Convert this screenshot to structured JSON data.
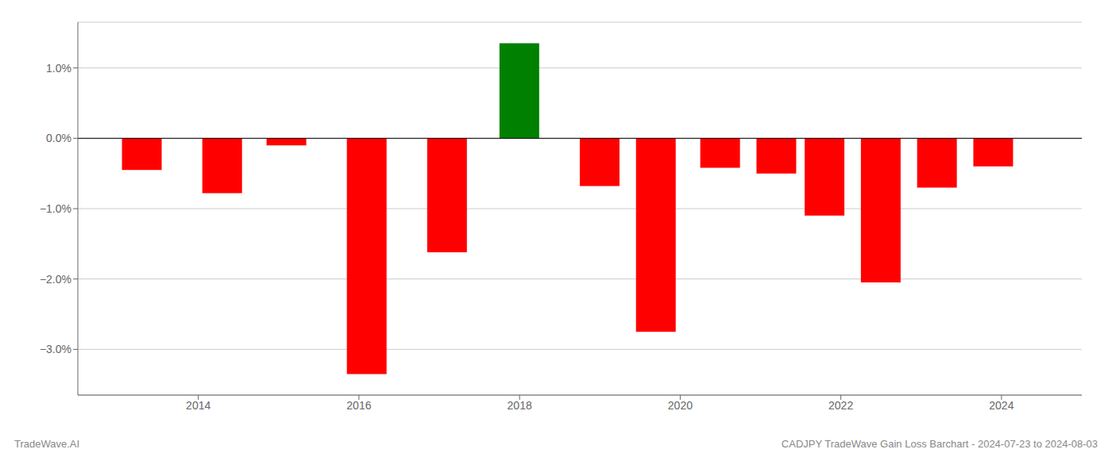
{
  "chart_data": {
    "type": "bar",
    "x": [
      2013.3,
      2014.3,
      2015.1,
      2016.1,
      2017.1,
      2018.0,
      2019.0,
      2019.7,
      2020.5,
      2021.2,
      2021.8,
      2022.5,
      2023.2,
      2023.9
    ],
    "values": [
      -0.45,
      -0.78,
      -0.1,
      -3.35,
      -1.62,
      1.35,
      -0.68,
      -2.75,
      -0.42,
      -0.5,
      -1.1,
      -2.05,
      -0.7,
      -0.4
    ],
    "colors": [
      "#ff0000",
      "#ff0000",
      "#ff0000",
      "#ff0000",
      "#ff0000",
      "#008000",
      "#ff0000",
      "#ff0000",
      "#ff0000",
      "#ff0000",
      "#ff0000",
      "#ff0000",
      "#ff0000",
      "#ff0000"
    ],
    "xlim": [
      2012.5,
      2025.0
    ],
    "ylim": [
      -3.65,
      1.65
    ],
    "xticks": [
      2014,
      2016,
      2018,
      2020,
      2022,
      2024
    ],
    "yticks": [
      {
        "value": -3.0,
        "label": "−3.0%"
      },
      {
        "value": -2.0,
        "label": "−2.0%"
      },
      {
        "value": -1.0,
        "label": "−1.0%"
      },
      {
        "value": 0.0,
        "label": "0.0%"
      },
      {
        "value": 1.0,
        "label": "1.0%"
      }
    ],
    "grid": true,
    "annotations": [
      "TradeWave.AI",
      "CADJPY TradeWave Gain Loss Barchart - 2024-07-23 to 2024-08-03"
    ]
  }
}
